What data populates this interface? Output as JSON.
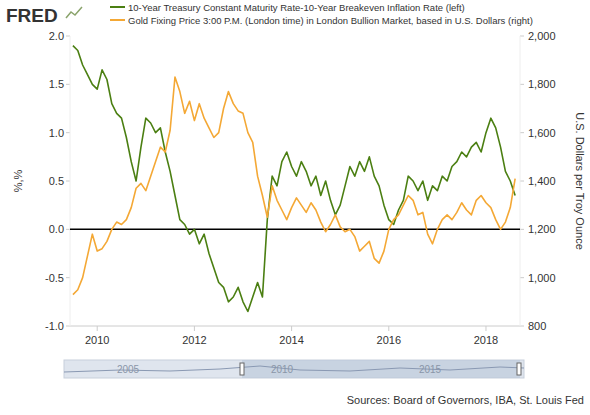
{
  "chart_data": {
    "type": "line",
    "logo": "FRED",
    "source": "Sources: Board of Governors, IBA, St. Louis Fed",
    "y_label": "%,%",
    "y2_label": "U.S. Dollars per Troy Ounce",
    "navigator_labels": [
      "2005",
      "2010",
      "2015"
    ],
    "grid": false,
    "legend": "top",
    "xlim": [
      2009.44,
      2018.7
    ],
    "xticks": [
      2010,
      2012,
      2014,
      2016,
      2018
    ],
    "ylim": [
      -1,
      2
    ],
    "yticks": [
      {
        "value": -1,
        "label": "-1.0"
      },
      {
        "value": -0.5,
        "label": "-0.5"
      },
      {
        "value": 0,
        "label": "0.0"
      },
      {
        "value": 0.5,
        "label": "0.5"
      },
      {
        "value": 1,
        "label": "1.0"
      },
      {
        "value": 1.5,
        "label": "1.5"
      },
      {
        "value": 2,
        "label": "2.0"
      }
    ],
    "y2lim": [
      800,
      2000
    ],
    "y2ticks": [
      800,
      {
        "value": 1000,
        "label": "1,000"
      },
      {
        "value": 1200,
        "label": "1,200"
      },
      {
        "value": 1400,
        "label": "1,400"
      },
      {
        "value": 1600,
        "label": "1,600"
      },
      {
        "value": 1800,
        "label": "1,800"
      },
      {
        "value": 2000,
        "label": "2,000"
      }
    ],
    "x": [
      2009.5,
      2009.6,
      2009.7,
      2009.8,
      2009.9,
      2010.0,
      2010.1,
      2010.2,
      2010.3,
      2010.4,
      2010.5,
      2010.6,
      2010.7,
      2010.8,
      2010.9,
      2011.0,
      2011.1,
      2011.2,
      2011.3,
      2011.4,
      2011.5,
      2011.6,
      2011.7,
      2011.8,
      2011.9,
      2012.0,
      2012.1,
      2012.2,
      2012.3,
      2012.4,
      2012.5,
      2012.6,
      2012.7,
      2012.8,
      2012.9,
      2013.0,
      2013.1,
      2013.2,
      2013.3,
      2013.4,
      2013.5,
      2013.6,
      2013.7,
      2013.8,
      2013.9,
      2014.0,
      2014.1,
      2014.2,
      2014.3,
      2014.4,
      2014.5,
      2014.6,
      2014.7,
      2014.8,
      2014.9,
      2015.0,
      2015.1,
      2015.2,
      2015.3,
      2015.4,
      2015.5,
      2015.6,
      2015.7,
      2015.8,
      2015.9,
      2016.0,
      2016.1,
      2016.2,
      2016.3,
      2016.4,
      2016.5,
      2016.6,
      2016.7,
      2016.8,
      2016.9,
      2017.0,
      2017.1,
      2017.2,
      2017.3,
      2017.4,
      2017.5,
      2017.6,
      2017.7,
      2017.8,
      2017.9,
      2018.0,
      2018.1,
      2018.2,
      2018.3,
      2018.4,
      2018.5,
      2018.6
    ],
    "series": [
      {
        "name": "10-Year Treasury Constant Maturity Rate-10-Year Breakeven Inflation Rate (left)",
        "color": "#4b7f12",
        "axis": "y",
        "values": [
          1.9,
          1.85,
          1.7,
          1.6,
          1.5,
          1.45,
          1.65,
          1.55,
          1.3,
          1.2,
          1.15,
          0.95,
          0.7,
          0.5,
          0.85,
          1.15,
          1.1,
          1.0,
          1.05,
          0.8,
          0.6,
          0.35,
          0.1,
          0.05,
          -0.05,
          0.0,
          -0.15,
          -0.05,
          -0.25,
          -0.4,
          -0.55,
          -0.6,
          -0.75,
          -0.7,
          -0.6,
          -0.75,
          -0.85,
          -0.7,
          -0.55,
          -0.7,
          0.1,
          0.55,
          0.45,
          0.7,
          0.8,
          0.65,
          0.55,
          0.7,
          0.6,
          0.45,
          0.55,
          0.35,
          0.5,
          0.3,
          0.15,
          0.25,
          0.45,
          0.65,
          0.55,
          0.7,
          0.6,
          0.75,
          0.55,
          0.45,
          0.25,
          0.1,
          0.05,
          0.2,
          0.3,
          0.55,
          0.5,
          0.4,
          0.5,
          0.3,
          0.45,
          0.4,
          0.55,
          0.5,
          0.65,
          0.7,
          0.8,
          0.75,
          0.85,
          0.9,
          0.8,
          1.0,
          1.15,
          1.05,
          0.85,
          0.6,
          0.5,
          0.35
        ]
      },
      {
        "name": "Gold Fixing Price 3:00 P.M. (London time) in London Bullion Market, based in U.S. Dollars (right)",
        "color": "#f4a835",
        "axis": "y2",
        "values": [
          930,
          950,
          1000,
          1090,
          1180,
          1110,
          1120,
          1150,
          1200,
          1230,
          1220,
          1240,
          1290,
          1370,
          1390,
          1360,
          1420,
          1480,
          1540,
          1520,
          1610,
          1830,
          1770,
          1680,
          1730,
          1650,
          1720,
          1660,
          1620,
          1580,
          1600,
          1700,
          1770,
          1720,
          1690,
          1680,
          1600,
          1560,
          1420,
          1340,
          1250,
          1380,
          1320,
          1280,
          1240,
          1290,
          1330,
          1300,
          1270,
          1310,
          1280,
          1230,
          1190,
          1220,
          1260,
          1210,
          1190,
          1200,
          1170,
          1110,
          1130,
          1150,
          1080,
          1060,
          1110,
          1200,
          1240,
          1260,
          1300,
          1340,
          1320,
          1260,
          1270,
          1180,
          1140,
          1200,
          1240,
          1260,
          1240,
          1270,
          1310,
          1280,
          1260,
          1320,
          1340,
          1310,
          1290,
          1240,
          1200,
          1230,
          1290,
          1410
        ]
      }
    ]
  }
}
